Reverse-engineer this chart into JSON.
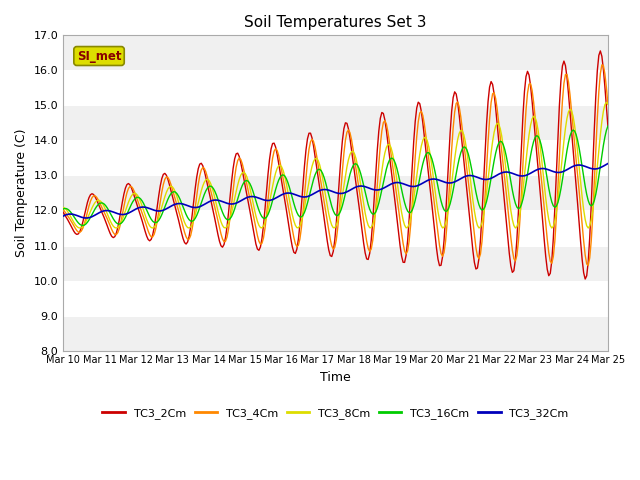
{
  "title": "Soil Temperatures Set 3",
  "xlabel": "Time",
  "ylabel": "Soil Temperature (C)",
  "ylim": [
    8.0,
    17.0
  ],
  "yticks": [
    8.0,
    9.0,
    10.0,
    11.0,
    12.0,
    13.0,
    14.0,
    15.0,
    16.0,
    17.0
  ],
  "xtick_labels": [
    "Mar 10",
    "Mar 11",
    "Mar 12",
    "Mar 13",
    "Mar 14",
    "Mar 15",
    "Mar 16",
    "Mar 17",
    "Mar 18",
    "Mar 19",
    "Mar 20",
    "Mar 21",
    "Mar 22",
    "Mar 23",
    "Mar 24",
    "Mar 25"
  ],
  "series": [
    {
      "label": "TC3_2Cm",
      "color": "#cc0000",
      "lw": 1.0
    },
    {
      "label": "TC3_4Cm",
      "color": "#ff8800",
      "lw": 1.0
    },
    {
      "label": "TC3_8Cm",
      "color": "#dddd00",
      "lw": 1.0
    },
    {
      "label": "TC3_16Cm",
      "color": "#00cc00",
      "lw": 1.0
    },
    {
      "label": "TC3_32Cm",
      "color": "#0000bb",
      "lw": 1.2
    }
  ],
  "si_met_label": "SI_met",
  "si_met_bg": "#dddd00",
  "si_met_text_color": "#880000",
  "si_met_edge_color": "#888800",
  "fig_bg": "#ffffff",
  "plot_bg": "#ffffff",
  "band_light": "#f0f0f0",
  "band_dark": "#e0e0e0"
}
